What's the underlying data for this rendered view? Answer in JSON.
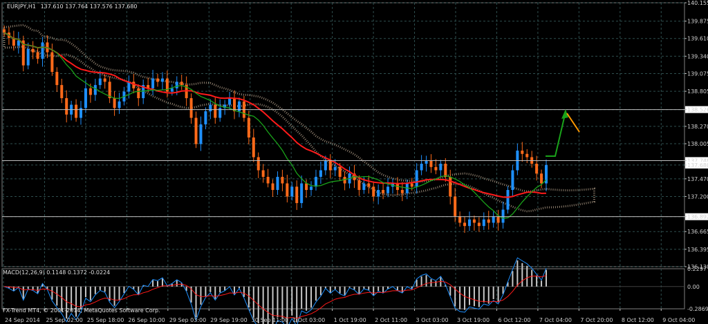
{
  "header": {
    "symbol_tf": "EURJPY,H1",
    "ohlc": "137.610 137.764 137.576 137.680"
  },
  "macd_label": "MACD(12,26,9) 0.1148 0.1372 -0.0224",
  "copyright": "FX-Trend MT4, © 2001-2014, MetaQuotes Software Corp.",
  "colors": {
    "background": "#000000",
    "grid": "#2f4f4f",
    "bull": "#1e90ff",
    "bear": "#ff6a1a",
    "ma_red": "#ff1a1a",
    "ma_green": "#1aa31a",
    "cloud": "#ffe4c4",
    "level_line": "#c0c0c0",
    "arrow_up": "#1aa31a",
    "arrow_down": "#ff9900"
  },
  "chart_data": {
    "type": "candlestick",
    "y_ticks": [
      "140.155",
      "139.875",
      "139.610",
      "139.340",
      "139.075",
      "138.805",
      "138.526",
      "138.270",
      "138.005",
      "137.748",
      "137.680",
      "137.470",
      "137.200",
      "136.892",
      "136.665",
      "136.395",
      "136.130"
    ],
    "ylim": [
      136.13,
      140.155
    ],
    "x_ticks": [
      "24 Sep 2014",
      "25 Sep 02:00",
      "25 Sep 18:00",
      "26 Sep 10:00",
      "29 Sep 03:00",
      "29 Sep 19:00",
      "30 Sep 11:00",
      "1 Oct 03:00",
      "1 Oct 19:00",
      "2 Oct 11:00",
      "3 Oct 03:00",
      "3 Oct 19:00",
      "6 Oct 12:00",
      "7 Oct 04:00",
      "7 Oct 20:00",
      "8 Oct 12:00",
      "9 Oct 04:00"
    ],
    "horizontal_levels": [
      138.526,
      137.748,
      136.892
    ],
    "highlighted_levels": [
      "138.526",
      "137.748",
      "136.892"
    ],
    "current_price": "137.680",
    "series": [
      {
        "name": "close",
        "values": [
          139.7,
          139.62,
          139.5,
          139.58,
          139.2,
          139.45,
          139.4,
          139.3,
          139.55,
          139.4,
          139.1,
          138.9,
          138.7,
          138.45,
          138.6,
          138.4,
          138.55,
          138.85,
          138.75,
          138.9,
          139.0,
          138.95,
          138.7,
          138.55,
          138.65,
          138.8,
          138.95,
          138.85,
          138.7,
          138.9,
          138.85,
          139.0,
          138.95,
          139.0,
          138.8,
          138.85,
          138.95,
          138.9,
          138.7,
          138.4,
          138.0,
          138.3,
          138.5,
          138.6,
          138.4,
          138.55,
          138.6,
          138.7,
          138.5,
          138.65,
          138.4,
          138.1,
          137.8,
          137.6,
          137.5,
          137.4,
          137.3,
          137.5,
          137.4,
          137.2,
          137.35,
          137.1,
          137.4,
          137.3,
          137.35,
          137.5,
          137.6,
          137.75,
          137.6,
          137.65,
          137.5,
          137.4,
          137.55,
          137.45,
          137.3,
          137.4,
          137.35,
          137.2,
          137.3,
          137.25,
          137.35,
          137.4,
          137.3,
          137.25,
          137.4,
          137.35,
          137.6,
          137.7,
          137.75,
          137.65,
          137.6,
          137.7,
          137.5,
          137.2,
          136.9,
          136.8,
          136.75,
          136.85,
          136.8,
          136.75,
          136.85,
          136.8,
          136.9,
          136.8,
          137.0,
          137.3,
          137.6,
          137.9,
          137.85,
          137.8,
          137.7,
          137.55,
          137.4,
          137.68
        ]
      }
    ],
    "indicators": {
      "macd": {
        "ylim": [
          -0.2869,
          0.2297
        ],
        "y_ticks": [
          "0.2297",
          "0.00",
          "-0.2869"
        ]
      }
    }
  }
}
